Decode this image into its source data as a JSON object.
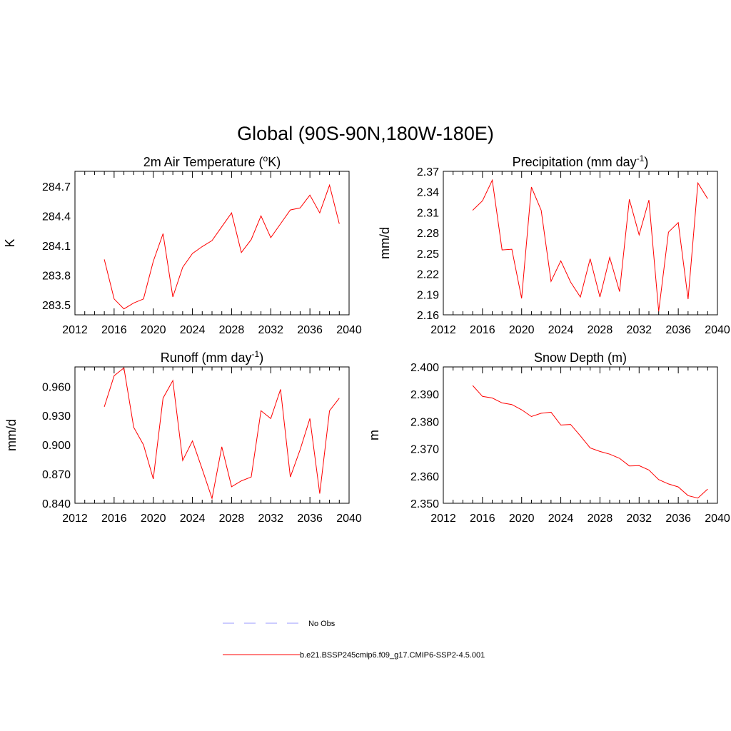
{
  "figure": {
    "title": "Global (90S-90N,180W-180E)",
    "line_color": "#ff0000",
    "obs_color": "#9999ff"
  },
  "legend": {
    "obs_label": "No Obs",
    "model_label": "b.e21.BSSP245cmip6.f09_g17.CMIP6-SSP2-4.5.001"
  },
  "chart_data": [
    {
      "type": "line",
      "title": "2m Air Temperature (",
      "title_sup": "o",
      "title_after": "K)",
      "ylabel": "K",
      "xlim": [
        2012,
        2040
      ],
      "ylim": [
        283.4,
        284.85
      ],
      "xticks": [
        2012,
        2016,
        2020,
        2024,
        2028,
        2032,
        2036,
        2040
      ],
      "yticks": [
        283.5,
        283.8,
        284.1,
        284.4,
        284.7
      ],
      "ytick_labels": [
        "283.5",
        "283.8",
        "284.1",
        "284.4",
        "284.7"
      ],
      "x": [
        2015,
        2016,
        2017,
        2018,
        2019,
        2020,
        2021,
        2022,
        2023,
        2024,
        2025,
        2026,
        2027,
        2028,
        2029,
        2030,
        2031,
        2032,
        2033,
        2034,
        2035,
        2036,
        2037,
        2038,
        2039
      ],
      "values": [
        283.96,
        283.56,
        283.46,
        283.52,
        283.56,
        283.94,
        284.22,
        283.58,
        283.88,
        284.02,
        284.09,
        284.15,
        284.29,
        284.43,
        284.03,
        284.16,
        284.4,
        284.18,
        284.32,
        284.46,
        284.48,
        284.61,
        284.43,
        284.71,
        284.32
      ]
    },
    {
      "type": "line",
      "title": "Precipitation (mm day",
      "title_sup": "-1",
      "title_after": ")",
      "ylabel": "mm/d",
      "xlim": [
        2012,
        2040
      ],
      "ylim": [
        2.16,
        2.37
      ],
      "xticks": [
        2012,
        2016,
        2020,
        2024,
        2028,
        2032,
        2036,
        2040
      ],
      "yticks": [
        2.16,
        2.19,
        2.22,
        2.25,
        2.28,
        2.31,
        2.34,
        2.37
      ],
      "ytick_labels": [
        "2.16",
        "2.19",
        "2.22",
        "2.25",
        "2.28",
        "2.31",
        "2.34",
        "2.37"
      ],
      "x": [
        2015,
        2016,
        2017,
        2018,
        2019,
        2020,
        2021,
        2022,
        2023,
        2024,
        2025,
        2026,
        2027,
        2028,
        2029,
        2030,
        2031,
        2032,
        2033,
        2034,
        2035,
        2036,
        2037,
        2038,
        2039
      ],
      "values": [
        2.313,
        2.327,
        2.357,
        2.255,
        2.256,
        2.184,
        2.347,
        2.313,
        2.209,
        2.239,
        2.208,
        2.186,
        2.242,
        2.186,
        2.244,
        2.194,
        2.329,
        2.277,
        2.328,
        2.165,
        2.281,
        2.295,
        2.183,
        2.353,
        2.33
      ]
    },
    {
      "type": "line",
      "title": "Runoff (mm day",
      "title_sup": "-1",
      "title_after": ")",
      "ylabel": "mm/d",
      "xlim": [
        2012,
        2040
      ],
      "ylim": [
        0.84,
        0.98
      ],
      "xticks": [
        2012,
        2016,
        2020,
        2024,
        2028,
        2032,
        2036,
        2040
      ],
      "yticks": [
        0.84,
        0.87,
        0.9,
        0.93,
        0.96
      ],
      "ytick_labels": [
        "0.840",
        "0.870",
        "0.900",
        "0.930",
        "0.960"
      ],
      "x": [
        2015,
        2016,
        2017,
        2018,
        2019,
        2020,
        2021,
        2022,
        2023,
        2024,
        2025,
        2026,
        2027,
        2028,
        2029,
        2030,
        2031,
        2032,
        2033,
        2034,
        2035,
        2036,
        2037,
        2038,
        2039
      ],
      "values": [
        0.939,
        0.971,
        0.979,
        0.918,
        0.9,
        0.865,
        0.948,
        0.966,
        0.884,
        0.904,
        0.875,
        0.845,
        0.898,
        0.857,
        0.863,
        0.867,
        0.935,
        0.927,
        0.957,
        0.867,
        0.895,
        0.927,
        0.85,
        0.935,
        0.948
      ]
    },
    {
      "type": "line",
      "title": "Snow Depth (m)",
      "title_sup": "",
      "title_after": "",
      "ylabel": "m",
      "xlim": [
        2012,
        2040
      ],
      "ylim": [
        2.35,
        2.4
      ],
      "xticks": [
        2012,
        2016,
        2020,
        2024,
        2028,
        2032,
        2036,
        2040
      ],
      "yticks": [
        2.35,
        2.36,
        2.37,
        2.38,
        2.39,
        2.4
      ],
      "ytick_labels": [
        "2.350",
        "2.360",
        "2.370",
        "2.380",
        "2.390",
        "2.400"
      ],
      "x": [
        2015,
        2016,
        2017,
        2018,
        2019,
        2020,
        2021,
        2022,
        2023,
        2024,
        2025,
        2026,
        2027,
        2028,
        2029,
        2030,
        2031,
        2032,
        2033,
        2034,
        2035,
        2036,
        2037,
        2038,
        2039
      ],
      "values": [
        2.3932,
        2.3892,
        2.3886,
        2.3868,
        2.3862,
        2.3843,
        2.3818,
        2.383,
        2.3834,
        2.3787,
        2.3789,
        2.3747,
        2.3703,
        2.369,
        2.368,
        2.3665,
        2.3637,
        2.3638,
        2.3622,
        2.3587,
        2.3571,
        2.356,
        2.3528,
        2.3519,
        2.3552
      ]
    }
  ]
}
